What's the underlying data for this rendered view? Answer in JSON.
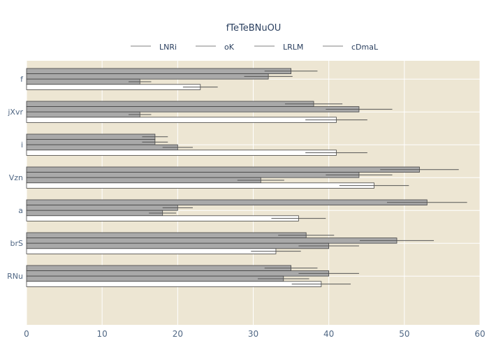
{
  "chart_data": {
    "type": "bar",
    "orientation": "horizontal",
    "title": "fTeTeBNuOU",
    "xlabel": "",
    "ylabel": "",
    "xlim": [
      0,
      60
    ],
    "x_ticks": [
      0,
      10,
      20,
      30,
      40,
      50,
      60
    ],
    "grid": true,
    "legend_position": "top",
    "categories": [
      "f",
      "jXvr",
      "i",
      "Vzn",
      "a",
      "brS",
      "RNu"
    ],
    "series": [
      {
        "name": "LNRi",
        "color": "#a9a9a9",
        "values": [
          35,
          38,
          17,
          52,
          53,
          37,
          35
        ],
        "errors": [
          3.5,
          3.8,
          1.7,
          5.2,
          5.3,
          3.7,
          3.5
        ]
      },
      {
        "name": "oK",
        "color": "#a9a9a9",
        "values": [
          32,
          44,
          17,
          44,
          20,
          49,
          40
        ],
        "errors": [
          3.2,
          4.4,
          1.7,
          4.4,
          2,
          4.9,
          4
        ]
      },
      {
        "name": "LRLM",
        "color": "#a9a9a9",
        "values": [
          15,
          15,
          20,
          31,
          18,
          40,
          34
        ],
        "errors": [
          1.5,
          1.5,
          2,
          3.1,
          1.8,
          4,
          3.4
        ]
      },
      {
        "name": "cDmaL",
        "color": "#ffffff",
        "values": [
          23,
          41,
          41,
          46,
          36,
          33,
          39
        ],
        "errors": [
          2.3,
          4.1,
          4.1,
          4.6,
          3.6,
          3.3,
          3.9
        ]
      }
    ]
  },
  "colors": {
    "plot_background": "#ede6d3",
    "grid": "#ffffff",
    "bar_edge": "#444444",
    "error_bar": "#555555",
    "legend_line": "#9a9a9a",
    "text": "#2a3f5f",
    "tick_text": "#506784"
  }
}
